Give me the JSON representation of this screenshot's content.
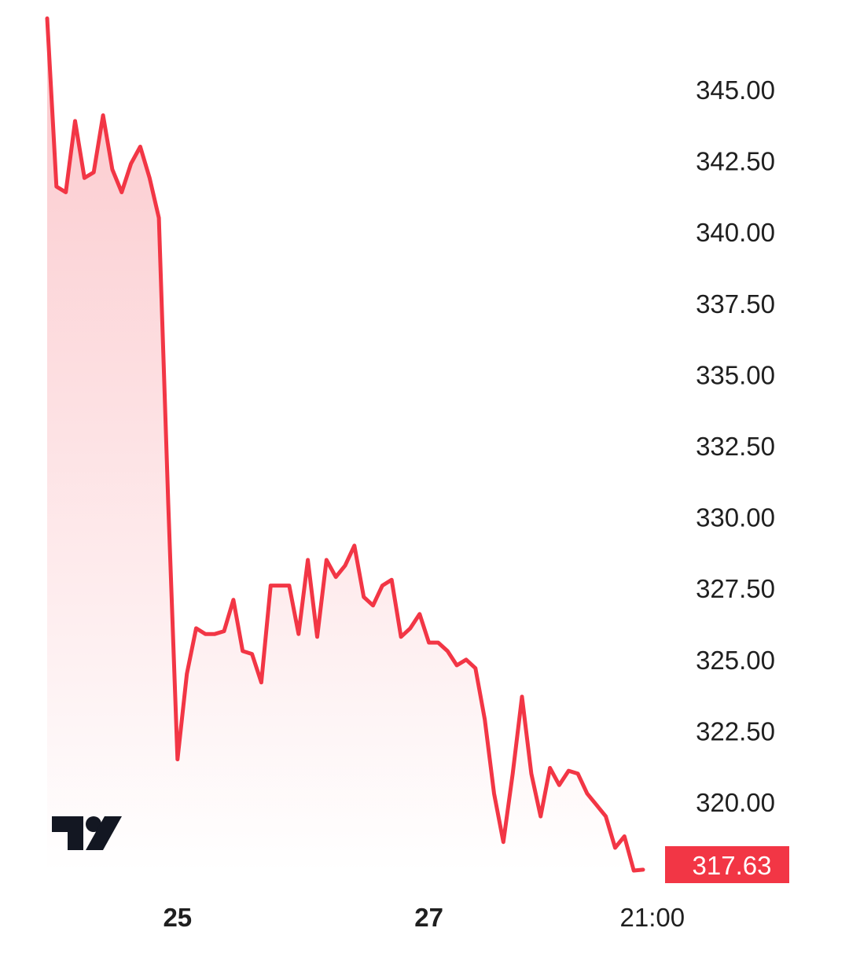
{
  "chart_data": {
    "type": "area",
    "y_ticks": [
      "345.00",
      "342.50",
      "340.00",
      "337.50",
      "335.00",
      "332.50",
      "330.00",
      "327.50",
      "325.00",
      "322.50",
      "320.00"
    ],
    "y_tick_values": [
      345,
      342.5,
      340,
      337.5,
      335,
      332.5,
      330,
      327.5,
      325,
      322.5,
      320
    ],
    "ylim": [
      316.6,
      347.5
    ],
    "x_ticks": [
      {
        "label": "25",
        "index": 14,
        "bold": true
      },
      {
        "label": "27",
        "index": 41,
        "bold": true
      },
      {
        "label": "21:00",
        "index": 65,
        "bold": false
      }
    ],
    "values": [
      347.5,
      341.6,
      341.4,
      343.9,
      341.9,
      342.1,
      344.1,
      342.2,
      341.4,
      342.4,
      343.0,
      341.9,
      340.5,
      330.5,
      321.5,
      324.5,
      326.1,
      325.9,
      325.9,
      326.0,
      327.1,
      325.3,
      325.2,
      324.2,
      327.6,
      327.6,
      327.6,
      325.9,
      328.5,
      325.8,
      328.5,
      327.9,
      328.3,
      329.0,
      327.2,
      326.9,
      327.6,
      327.8,
      325.8,
      326.1,
      326.6,
      325.6,
      325.6,
      325.3,
      324.8,
      325.0,
      324.7,
      322.9,
      320.3,
      318.6,
      321.0,
      323.7,
      321.0,
      319.5,
      321.2,
      320.6,
      321.1,
      321.0,
      320.3,
      319.9,
      319.5,
      318.4,
      318.8,
      317.6,
      317.63
    ],
    "last_value": "317.63",
    "line_color": "#f23645",
    "fill_color": "#f23645",
    "logo": "tradingview-logo"
  }
}
